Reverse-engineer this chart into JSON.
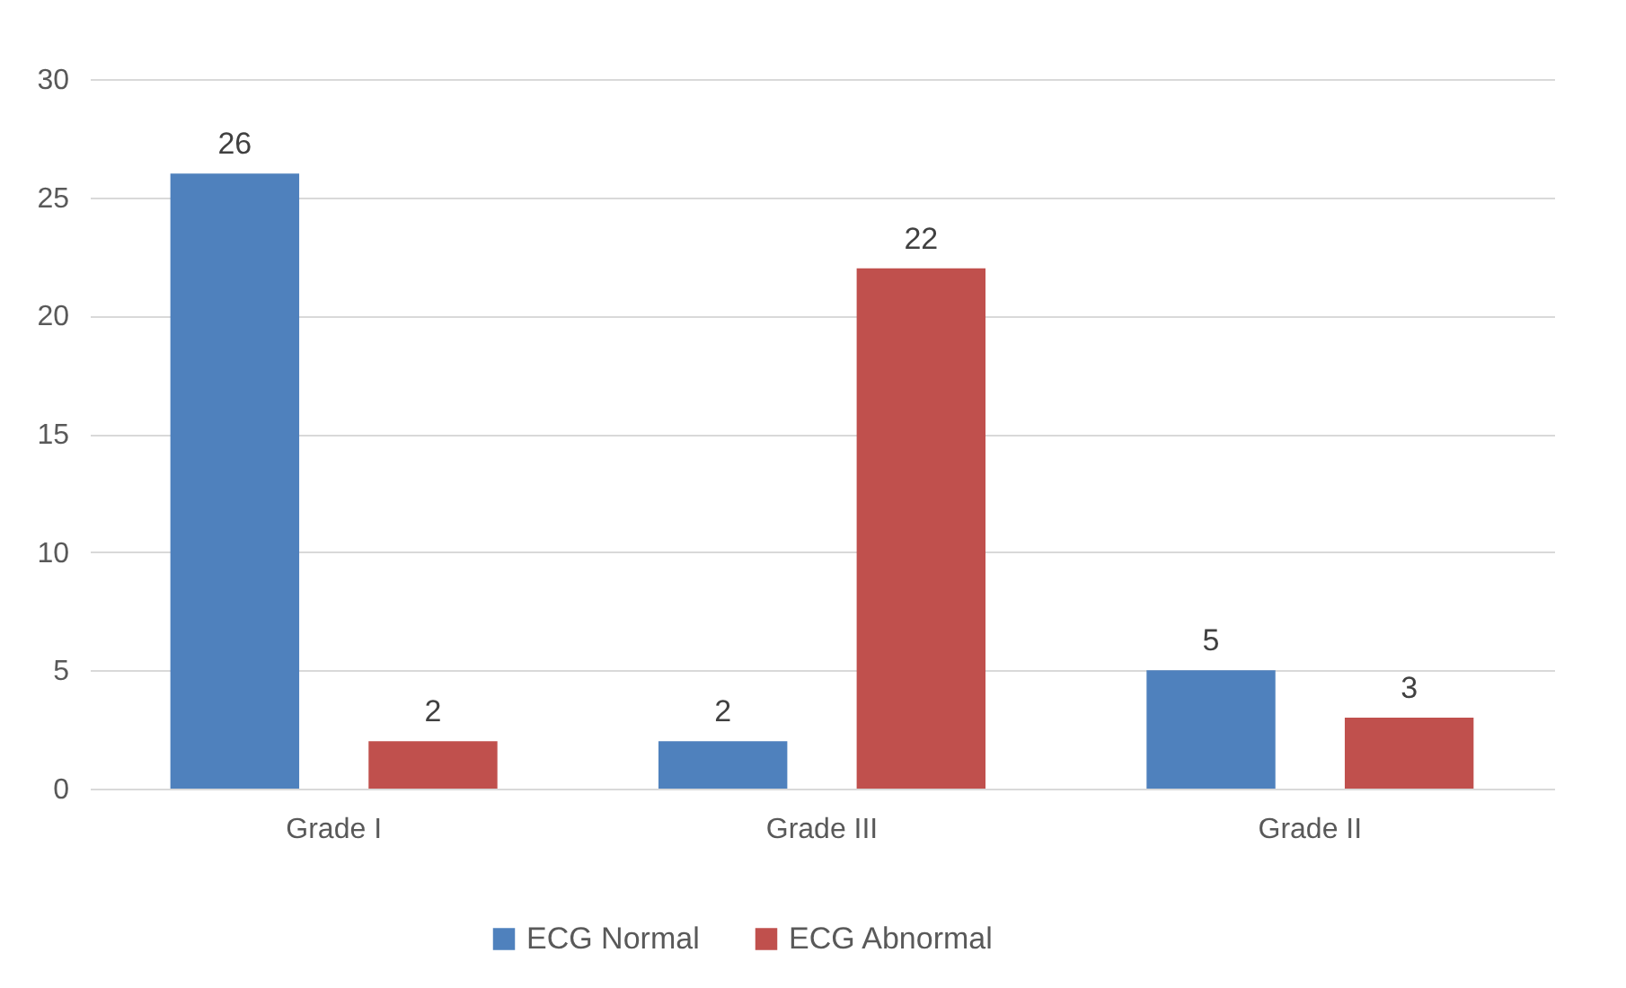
{
  "chart_data": {
    "type": "bar",
    "categories": [
      "Grade I",
      "Grade III",
      "Grade II"
    ],
    "series": [
      {
        "name": "ECG Normal",
        "color": "#4f81bd",
        "values": [
          26,
          2,
          5
        ]
      },
      {
        "name": "ECG Abnormal",
        "color": "#c0504d",
        "values": [
          2,
          22,
          3
        ]
      }
    ],
    "ylim": [
      0,
      30
    ],
    "yticks": [
      0,
      5,
      10,
      15,
      20,
      25,
      30
    ],
    "grid": "y",
    "legend": "bottom",
    "data_labels": true
  }
}
